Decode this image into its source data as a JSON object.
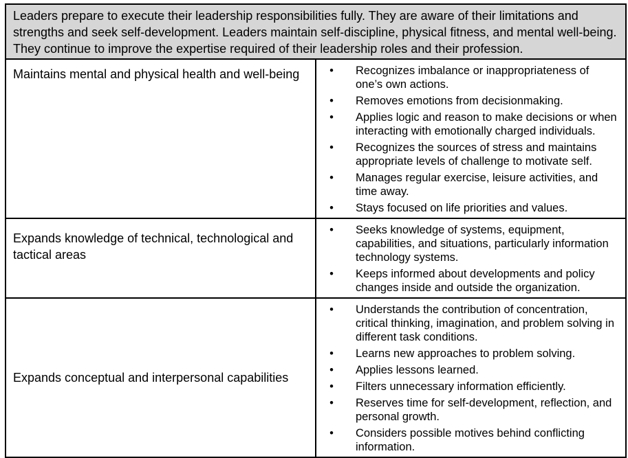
{
  "header": {
    "text": "Leaders prepare to execute their leadership responsibilities fully. They are aware of their limitations and strengths and seek self-development. Leaders maintain self-discipline, physical fitness, and mental well-being. They continue to improve the expertise required of their leadership roles and their profession."
  },
  "bullet_glyph": "•",
  "rows": [
    {
      "label": "Maintains mental and physical health and well-being",
      "items": [
        "Recognizes imbalance or inappropriateness of one’s own actions.",
        "Removes emotions from decisionmaking.",
        "Applies logic and reason to make decisions or when interacting with emotionally charged individuals.",
        "Recognizes the sources of stress and maintains appropriate levels of challenge to motivate self.",
        "Manages regular exercise, leisure activities, and time away.",
        "Stays focused on life priorities and values."
      ]
    },
    {
      "label": "Expands knowledge of technical, technological and tactical areas",
      "items": [
        "Seeks knowledge of systems, equipment, capabilities, and situations, particularly information technology systems.",
        "Keeps informed about developments and policy changes inside and outside the organization."
      ]
    },
    {
      "label": "Expands conceptual and interpersonal capabilities",
      "items": [
        "Understands the contribution of concentration, critical thinking, imagination, and problem solving in different task conditions.",
        "Learns new approaches to problem solving.",
        "Applies lessons learned.",
        "Filters unnecessary information efficiently.",
        "Reserves time for self-development, reflection, and personal growth.",
        "Considers possible motives behind conflicting information."
      ]
    }
  ]
}
